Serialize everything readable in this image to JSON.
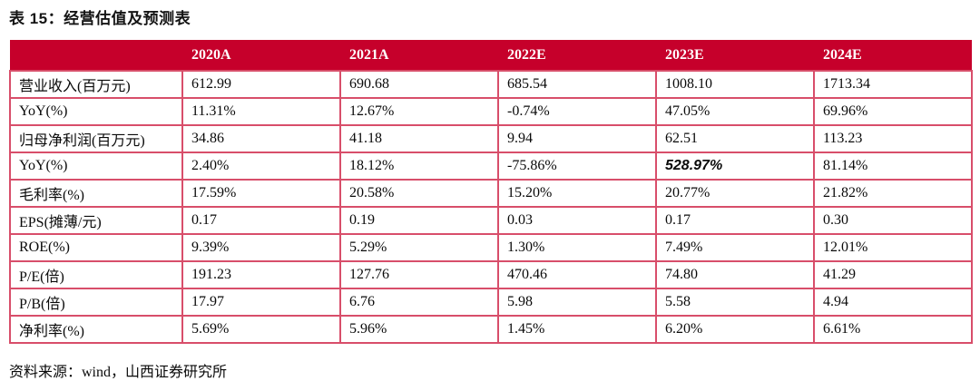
{
  "title": "表 15：经营估值及预测表",
  "source_note": "资料来源：wind，山西证券研究所",
  "colors": {
    "header_bg": "#C6002B",
    "header_text": "#FFFFFF",
    "table_border": "#D84E6A",
    "body_text": "#0A0A0A"
  },
  "table": {
    "corner_label": "",
    "columns": [
      "2020A",
      "2021A",
      "2022E",
      "2023E",
      "2024E"
    ],
    "rows": [
      {
        "label": "营业收入(百万元)",
        "values": [
          "612.99",
          "690.68",
          "685.54",
          "1008.10",
          "1713.34"
        ]
      },
      {
        "label": "YoY(%)",
        "values": [
          "11.31%",
          "12.67%",
          "-0.74%",
          "47.05%",
          "69.96%"
        ]
      },
      {
        "label": "归母净利润(百万元)",
        "values": [
          "34.86",
          "41.18",
          "9.94",
          "62.51",
          "113.23"
        ]
      },
      {
        "label": "YoY(%)",
        "values": [
          "2.40%",
          "18.12%",
          "-75.86%",
          "528.97%",
          "81.14%"
        ],
        "emphasis_col": 3
      },
      {
        "label": "毛利率(%)",
        "values": [
          "17.59%",
          "20.58%",
          "15.20%",
          "20.77%",
          "21.82%"
        ]
      },
      {
        "label": "EPS(摊薄/元)",
        "values": [
          "0.17",
          "0.19",
          "0.03",
          "0.17",
          "0.30"
        ]
      },
      {
        "label": "ROE(%)",
        "values": [
          "9.39%",
          "5.29%",
          "1.30%",
          "7.49%",
          "12.01%"
        ]
      },
      {
        "label": "P/E(倍)",
        "values": [
          "191.23",
          "127.76",
          "470.46",
          "74.80",
          "41.29"
        ]
      },
      {
        "label": "P/B(倍)",
        "values": [
          "17.97",
          "6.76",
          "5.98",
          "5.58",
          "4.94"
        ]
      },
      {
        "label": "净利率(%)",
        "values": [
          "5.69%",
          "5.96%",
          "1.45%",
          "6.20%",
          "6.61%"
        ]
      }
    ]
  }
}
